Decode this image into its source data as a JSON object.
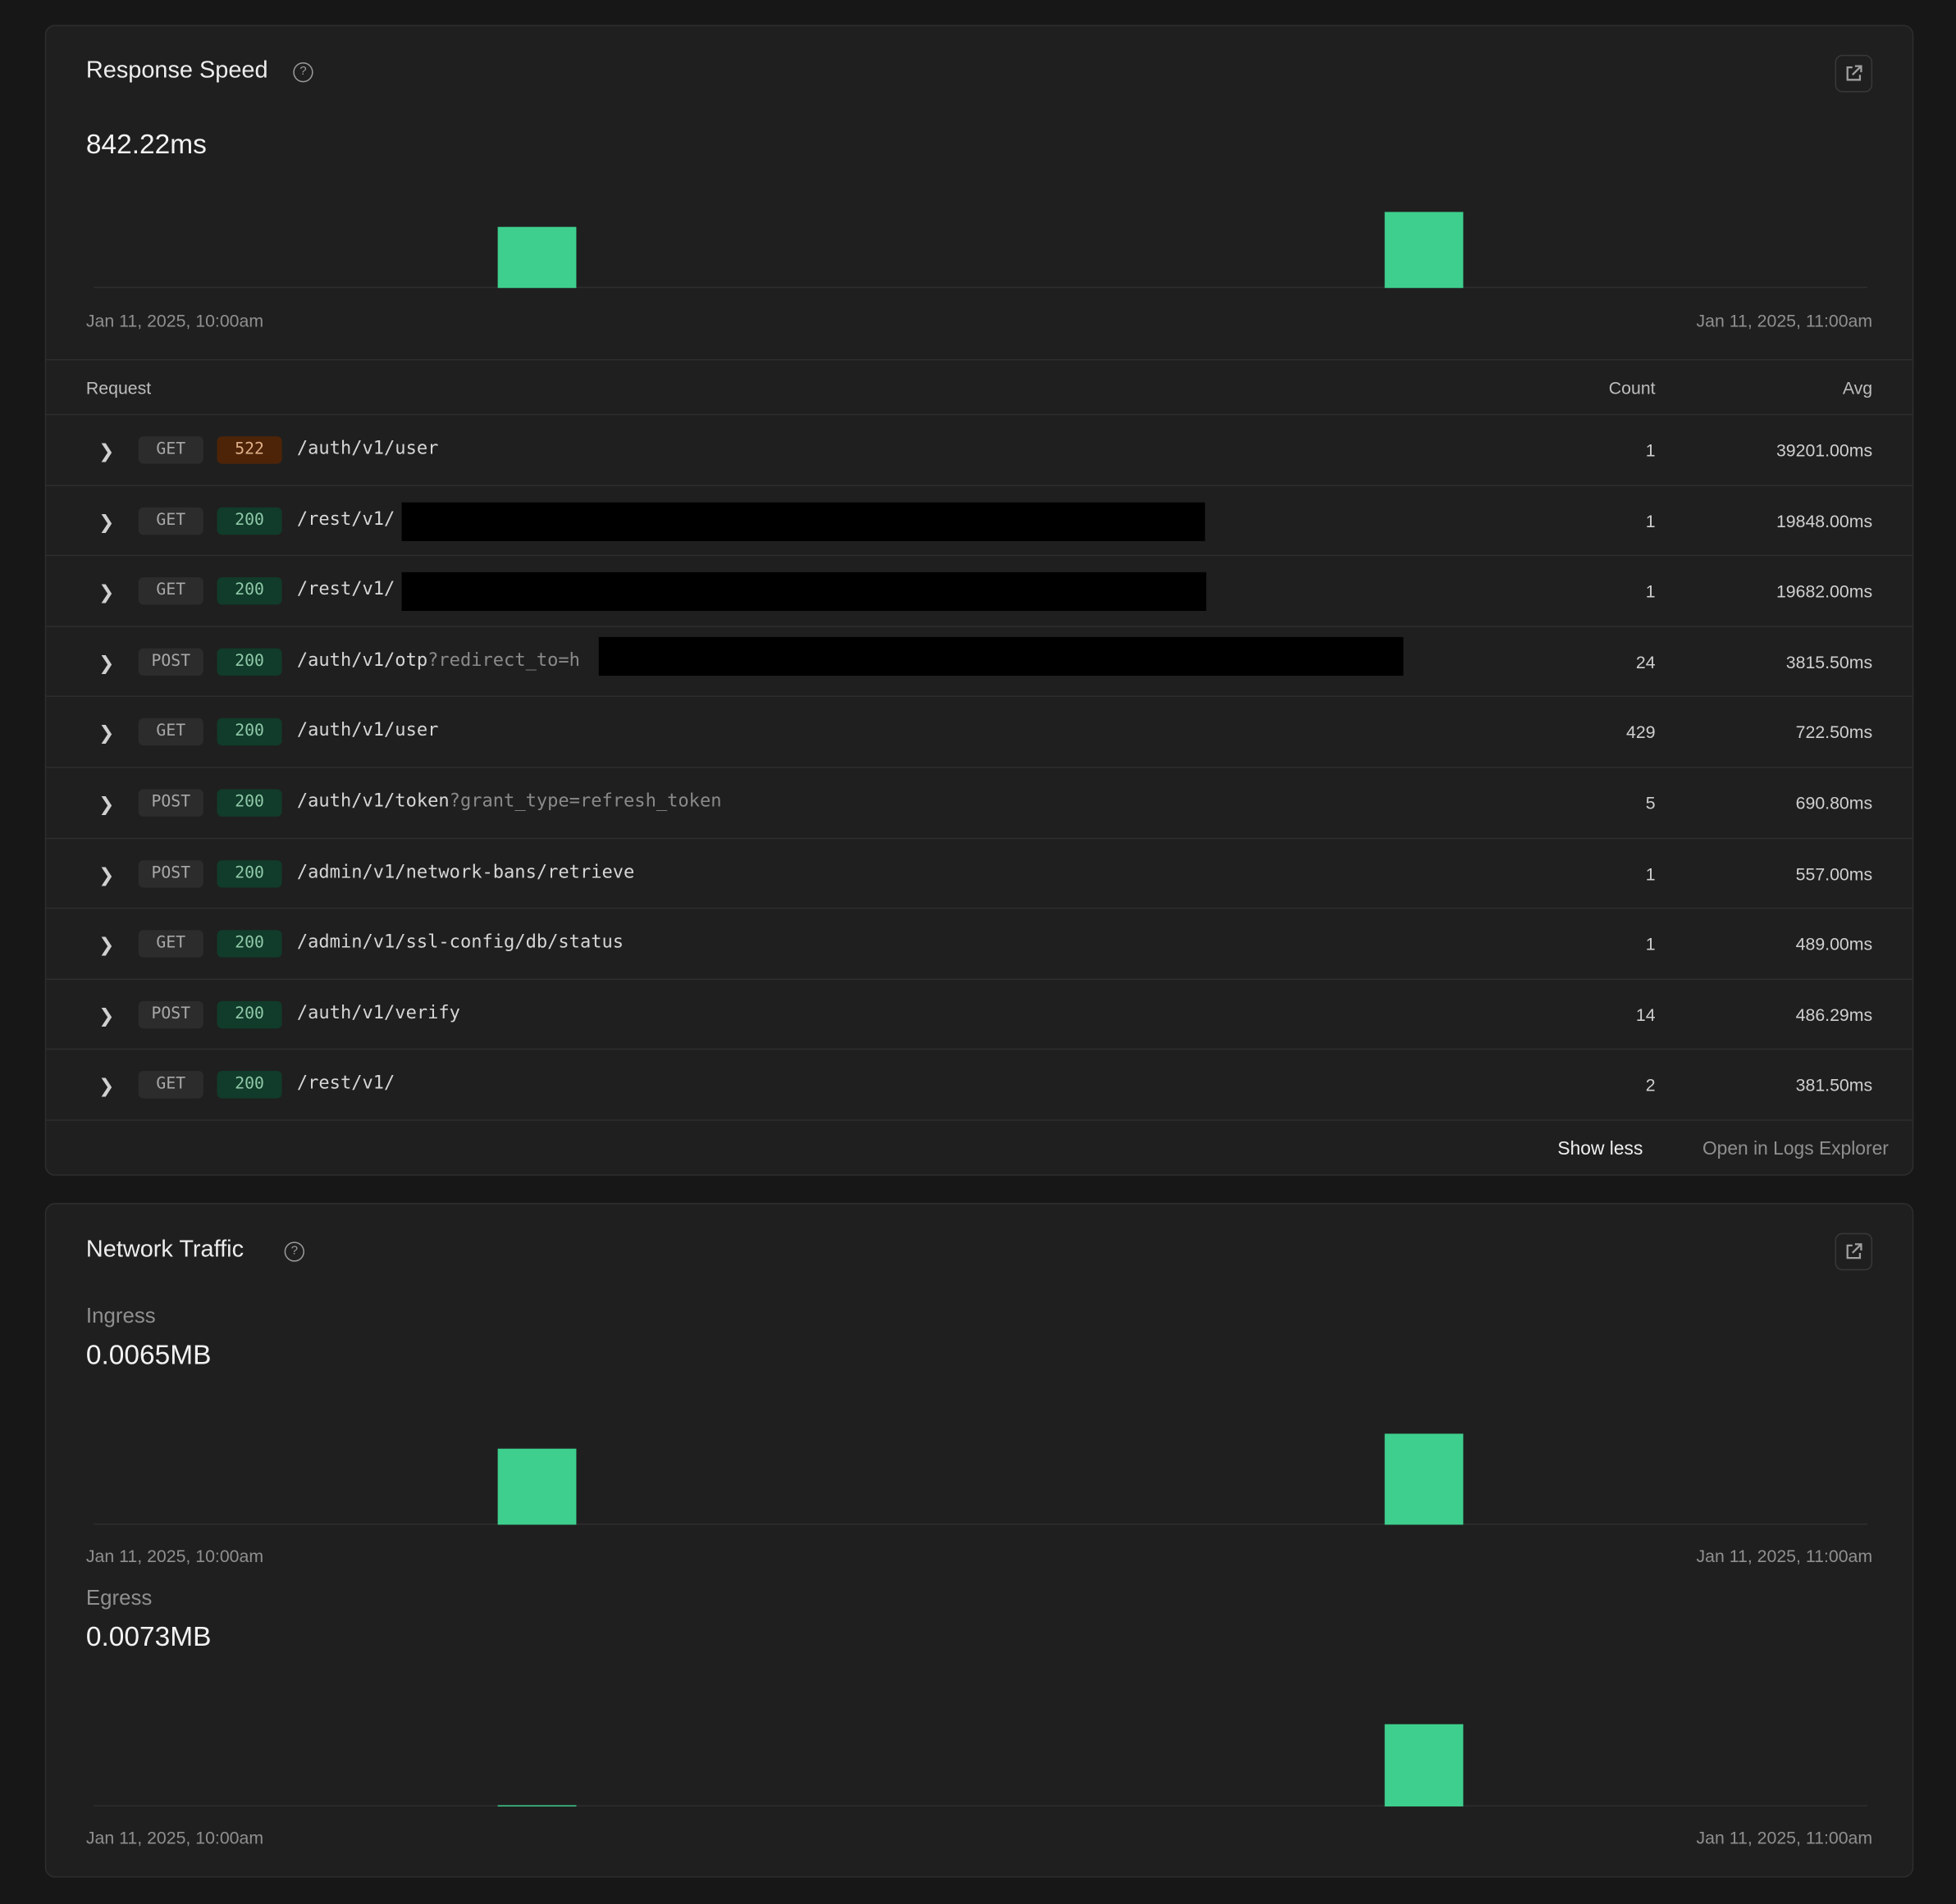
{
  "response_speed": {
    "title": "Response Speed",
    "value": "842.22ms",
    "x_start": "Jan 11, 2025, 10:00am",
    "x_end": "Jan 11, 2025, 11:00am",
    "bars": [
      {
        "position": 0.228,
        "width": 0.044,
        "value": 49
      },
      {
        "position": 0.728,
        "width": 0.044,
        "value": 61
      }
    ],
    "ymax": 61,
    "bar_color": "#3ecf8e",
    "table": {
      "headers": {
        "request": "Request",
        "count": "Count",
        "avg": "Avg"
      },
      "rows": [
        {
          "method": "GET",
          "status": "522",
          "path": "/auth/v1/user",
          "query": "",
          "redacted": false,
          "count": "1",
          "avg": "39201.00ms"
        },
        {
          "method": "GET",
          "status": "200",
          "path": "/rest/v1/",
          "query": "",
          "redacted": true,
          "count": "1",
          "avg": "19848.00ms"
        },
        {
          "method": "GET",
          "status": "200",
          "path": "/rest/v1/",
          "query": "",
          "redacted": true,
          "count": "1",
          "avg": "19682.00ms"
        },
        {
          "method": "POST",
          "status": "200",
          "path": "/auth/v1/otp",
          "query": "?redirect_to=h",
          "redacted": true,
          "count": "24",
          "avg": "3815.50ms"
        },
        {
          "method": "GET",
          "status": "200",
          "path": "/auth/v1/user",
          "query": "",
          "redacted": false,
          "count": "429",
          "avg": "722.50ms"
        },
        {
          "method": "POST",
          "status": "200",
          "path": "/auth/v1/token",
          "query": "?grant_type=refresh_token",
          "redacted": false,
          "count": "5",
          "avg": "690.80ms"
        },
        {
          "method": "POST",
          "status": "200",
          "path": "/admin/v1/network-bans/retrieve",
          "query": "",
          "redacted": false,
          "count": "1",
          "avg": "557.00ms"
        },
        {
          "method": "GET",
          "status": "200",
          "path": "/admin/v1/ssl-config/db/status",
          "query": "",
          "redacted": false,
          "count": "1",
          "avg": "489.00ms"
        },
        {
          "method": "POST",
          "status": "200",
          "path": "/auth/v1/verify",
          "query": "",
          "redacted": false,
          "count": "14",
          "avg": "486.29ms"
        },
        {
          "method": "GET",
          "status": "200",
          "path": "/rest/v1/",
          "query": "",
          "redacted": false,
          "count": "2",
          "avg": "381.50ms"
        }
      ]
    },
    "footer": {
      "show_less": "Show less",
      "open_logs": "Open in Logs Explorer"
    }
  },
  "network_traffic": {
    "title": "Network Traffic",
    "ingress": {
      "label": "Ingress",
      "value": "0.0065MB",
      "x_start": "Jan 11, 2025, 10:00am",
      "x_end": "Jan 11, 2025, 11:00am",
      "bars": [
        {
          "position": 0.228,
          "width": 0.044,
          "value": 61
        },
        {
          "position": 0.728,
          "width": 0.044,
          "value": 73
        }
      ],
      "ymax": 73
    },
    "egress": {
      "label": "Egress",
      "value": "0.0073MB",
      "x_start": "Jan 11, 2025, 10:00am",
      "x_end": "Jan 11, 2025, 11:00am",
      "bars": [
        {
          "position": 0.228,
          "width": 0.044,
          "value": 1
        },
        {
          "position": 0.728,
          "width": 0.044,
          "value": 66
        }
      ],
      "ymax": 66
    }
  },
  "icons": {
    "help": "help-circle-icon",
    "external": "external-link-icon",
    "expand": "chevron-right-icon"
  }
}
